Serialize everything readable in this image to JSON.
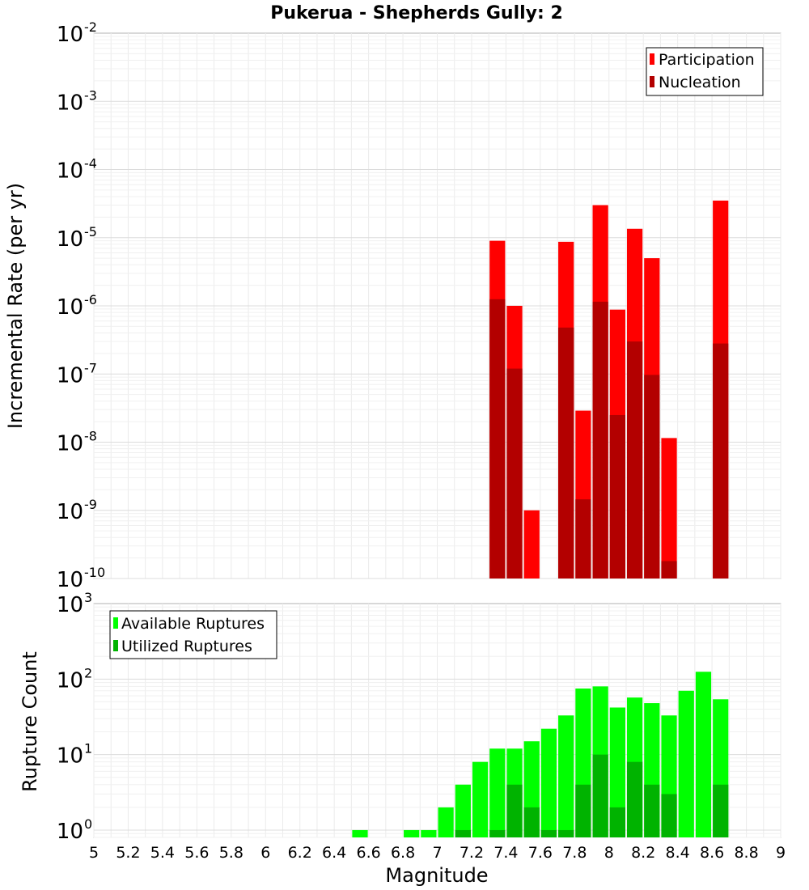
{
  "chart_data": [
    {
      "type": "bar",
      "title": "Pukerua - Shepherds Gully: 2",
      "xlabel": "Magnitude",
      "ylabel": "Incremental Rate (per yr)",
      "xlim": [
        5,
        9
      ],
      "ylim": [
        1e-10,
        0.01
      ],
      "yscale": "log",
      "grid": true,
      "legend_position": "top-right",
      "x": [
        7.35,
        7.45,
        7.55,
        7.75,
        7.85,
        7.95,
        8.05,
        8.15,
        8.25,
        8.35,
        8.65
      ],
      "series": [
        {
          "name": "Participation",
          "color": "#ff0000",
          "values": [
            9e-06,
            1e-06,
            1e-09,
            8.7e-06,
            2.9e-08,
            3e-05,
            8.8e-07,
            1.35e-05,
            5e-06,
            1.15e-08,
            3.5e-05
          ]
        },
        {
          "name": "Nucleation",
          "color": "#b30000",
          "values": [
            1.25e-06,
            1.2e-07,
            null,
            4.8e-07,
            1.45e-09,
            1.15e-06,
            2.5e-08,
            3e-07,
            9.7e-08,
            1.8e-10,
            2.8e-07
          ]
        }
      ]
    },
    {
      "type": "bar",
      "title": "",
      "xlabel": "Magnitude",
      "ylabel": "Rupture Count",
      "xlim": [
        5,
        9
      ],
      "ylim": [
        0.8,
        1000
      ],
      "yscale": "log",
      "grid": true,
      "legend_position": "top-left",
      "x": [
        6.55,
        6.85,
        6.95,
        7.05,
        7.15,
        7.25,
        7.35,
        7.45,
        7.55,
        7.65,
        7.75,
        7.85,
        7.95,
        8.05,
        8.15,
        8.25,
        8.35,
        8.45,
        8.55,
        8.65
      ],
      "series": [
        {
          "name": "Available Ruptures",
          "color": "#00ff00",
          "values": [
            1,
            1,
            1,
            2,
            4,
            8,
            12,
            12,
            15,
            22,
            33,
            75,
            80,
            42,
            57,
            48,
            33,
            70,
            125,
            54
          ]
        },
        {
          "name": "Utilized Ruptures",
          "color": "#00b300",
          "values": [
            null,
            null,
            null,
            null,
            1,
            null,
            1,
            4,
            2,
            1,
            1,
            4,
            10,
            2,
            8,
            4,
            3,
            null,
            null,
            4
          ]
        }
      ]
    }
  ],
  "x_ticks": [
    "5",
    "5.2",
    "5.4",
    "5.6",
    "5.8",
    "6",
    "6.2",
    "6.4",
    "6.6",
    "6.8",
    "7",
    "7.2",
    "7.4",
    "7.6",
    "7.8",
    "8",
    "8.2",
    "8.4",
    "8.6",
    "8.8",
    "9"
  ],
  "top_y_ticks": [
    {
      "base": "10",
      "exp": "-2"
    },
    {
      "base": "10",
      "exp": "-3"
    },
    {
      "base": "10",
      "exp": "-4"
    },
    {
      "base": "10",
      "exp": "-5"
    },
    {
      "base": "10",
      "exp": "-6"
    },
    {
      "base": "10",
      "exp": "-7"
    },
    {
      "base": "10",
      "exp": "-8"
    },
    {
      "base": "10",
      "exp": "-9"
    },
    {
      "base": "10",
      "exp": "-10"
    }
  ],
  "bottom_y_ticks": [
    {
      "base": "10",
      "exp": "3"
    },
    {
      "base": "10",
      "exp": "2"
    },
    {
      "base": "10",
      "exp": "1"
    },
    {
      "base": "10",
      "exp": "0"
    }
  ]
}
